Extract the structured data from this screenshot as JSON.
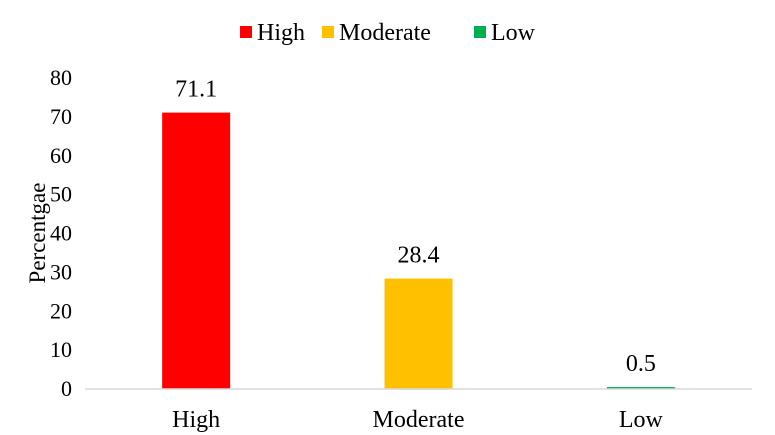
{
  "chart_data": {
    "type": "bar",
    "categories": [
      "High",
      "Moderate",
      "Low"
    ],
    "values": [
      71.1,
      28.4,
      0.5
    ],
    "data_labels": [
      "71.1",
      "28.4",
      "0.5"
    ],
    "colors": [
      "#ff0000",
      "#ffc000",
      "#00b050"
    ],
    "legend": {
      "placement": "top",
      "entries": [
        "High",
        "Moderate",
        "Low"
      ]
    },
    "title": "",
    "xlabel": "",
    "ylabel": "Percentgae",
    "ylim": [
      0,
      80
    ],
    "yticks": [
      0,
      10,
      20,
      30,
      40,
      50,
      60,
      70,
      80
    ],
    "grid": false,
    "axis_color": "#d9d9d9"
  }
}
